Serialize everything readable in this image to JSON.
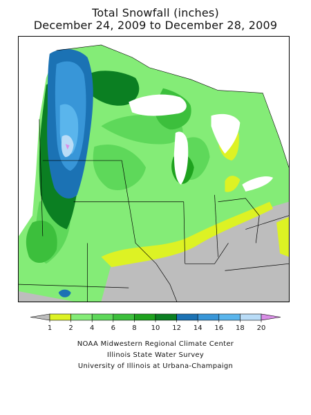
{
  "title": {
    "line1": "Total Snowfall (inches)",
    "line2": "December 24, 2009 to December 28, 2009"
  },
  "legend": {
    "breaks": [
      "1",
      "2",
      "4",
      "6",
      "8",
      "10",
      "12",
      "14",
      "16",
      "18",
      "20"
    ],
    "below_min_color": "#bdbdbd",
    "above_max_color": "#d98ee6",
    "colors": [
      "#ddf224",
      "#84ec77",
      "#5ed85a",
      "#3cbf3c",
      "#1ea21e",
      "#0b7f22",
      "#1b72b4",
      "#3896d8",
      "#5ab5ec",
      "#b9dcf7"
    ]
  },
  "credits": {
    "line1": "NOAA Midwestern Regional Climate Center",
    "line2": "Illinois State Water Survey",
    "line3": "University of Illinois at Urbana-Champaign"
  },
  "map": {
    "region": "Upper Midwest",
    "palette": {
      "none": "#bdbdbd",
      "c1": "#ddf224",
      "c2": "#84ec77",
      "c4": "#5ed85a",
      "c6": "#3cbf3c",
      "c8": "#1ea21e",
      "c10": "#0b7f22",
      "c12": "#1b72b4",
      "c14": "#3896d8",
      "c16": "#5ab5ec",
      "c18": "#b9dcf7",
      "c20": "#d98ee6",
      "water": "#ffffff"
    }
  }
}
